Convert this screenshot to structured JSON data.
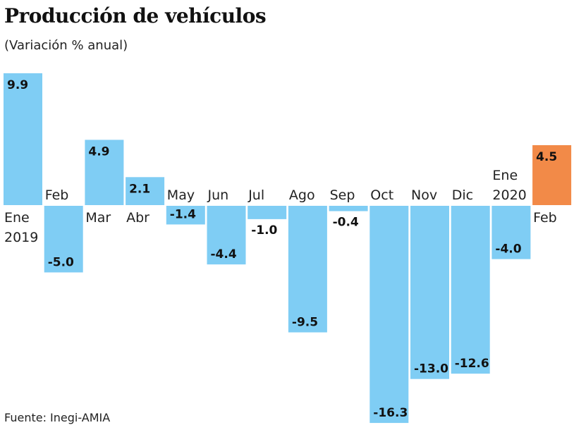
{
  "chart_data": {
    "type": "bar",
    "title": "Producción de vehículos",
    "subtitle": "(Variación % anual)",
    "source": "Fuente: Inegi-AMIA",
    "categories": [
      [
        "Ene",
        "2019"
      ],
      [
        "Feb"
      ],
      [
        "Mar"
      ],
      [
        "Abr"
      ],
      [
        "May"
      ],
      [
        "Jun"
      ],
      [
        "Jul"
      ],
      [
        "Ago"
      ],
      [
        "Sep"
      ],
      [
        "Oct"
      ],
      [
        "Nov"
      ],
      [
        "Dic"
      ],
      [
        "Ene",
        "2020"
      ],
      [
        "Feb"
      ]
    ],
    "values": [
      9.9,
      -5.0,
      4.9,
      2.1,
      -1.4,
      -4.4,
      -1.0,
      -9.5,
      -0.4,
      -16.3,
      -13.0,
      -12.6,
      -4.0,
      4.5
    ],
    "value_labels": [
      "9.9",
      "-5.0",
      "4.9",
      "2.1",
      "-1.4",
      "-4.4",
      "-1.0",
      "-9.5",
      "-0.4",
      "-16.3",
      "-13.0",
      "-12.6",
      "-4.0",
      "4.5"
    ],
    "highlight_index": 13,
    "colors": {
      "bar": "#7fcdf4",
      "highlight": "#f28a48"
    },
    "grid": false,
    "legend": "none"
  }
}
